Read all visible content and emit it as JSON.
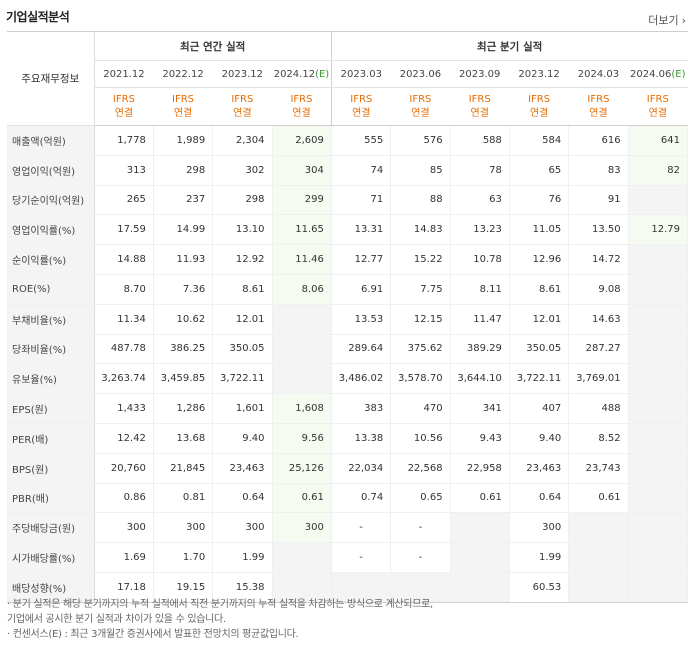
{
  "title": "기업실적분석",
  "more": "더보기",
  "header": {
    "corner": "주요재무정보",
    "annual_label": "최근 연간 실적",
    "quarter_label": "최근 분기 실적",
    "periods": [
      "2021.12",
      "2022.12",
      "2023.12",
      "2024.12",
      "2023.03",
      "2023.06",
      "2023.09",
      "2023.12",
      "2024.03",
      "2024.06"
    ],
    "est_mark": "(E)",
    "ifrs": "IFRS",
    "consol": "연결"
  },
  "rows": [
    {
      "label": "매출액(억원)",
      "values": [
        "1,778",
        "1,989",
        "2,304",
        "2,609",
        "555",
        "576",
        "588",
        "584",
        "616",
        "641"
      ]
    },
    {
      "label": "영업이익(억원)",
      "values": [
        "313",
        "298",
        "302",
        "304",
        "74",
        "85",
        "78",
        "65",
        "83",
        "82"
      ]
    },
    {
      "label": "당기순이익(억원)",
      "values": [
        "265",
        "237",
        "298",
        "299",
        "71",
        "88",
        "63",
        "76",
        "91",
        ""
      ]
    },
    {
      "label": "영업이익률(%)",
      "values": [
        "17.59",
        "14.99",
        "13.10",
        "11.65",
        "13.31",
        "14.83",
        "13.23",
        "11.05",
        "13.50",
        "12.79"
      ]
    },
    {
      "label": "순이익률(%)",
      "values": [
        "14.88",
        "11.93",
        "12.92",
        "11.46",
        "12.77",
        "15.22",
        "10.78",
        "12.96",
        "14.72",
        ""
      ]
    },
    {
      "label": "ROE(%)",
      "values": [
        "8.70",
        "7.36",
        "8.61",
        "8.06",
        "6.91",
        "7.75",
        "8.11",
        "8.61",
        "9.08",
        ""
      ]
    },
    {
      "label": "부채비율(%)",
      "values": [
        "11.34",
        "10.62",
        "12.01",
        "",
        "13.53",
        "12.15",
        "11.47",
        "12.01",
        "14.63",
        ""
      ]
    },
    {
      "label": "당좌비율(%)",
      "values": [
        "487.78",
        "386.25",
        "350.05",
        "",
        "289.64",
        "375.62",
        "389.29",
        "350.05",
        "287.27",
        ""
      ]
    },
    {
      "label": "유보율(%)",
      "values": [
        "3,263.74",
        "3,459.85",
        "3,722.11",
        "",
        "3,486.02",
        "3,578.70",
        "3,644.10",
        "3,722.11",
        "3,769.01",
        ""
      ]
    },
    {
      "label": "EPS(원)",
      "values": [
        "1,433",
        "1,286",
        "1,601",
        "1,608",
        "383",
        "470",
        "341",
        "407",
        "488",
        ""
      ]
    },
    {
      "label": "PER(배)",
      "values": [
        "12.42",
        "13.68",
        "9.40",
        "9.56",
        "13.38",
        "10.56",
        "9.43",
        "9.40",
        "8.52",
        ""
      ]
    },
    {
      "label": "BPS(원)",
      "values": [
        "20,760",
        "21,845",
        "23,463",
        "25,126",
        "22,034",
        "22,568",
        "22,958",
        "23,463",
        "23,743",
        ""
      ]
    },
    {
      "label": "PBR(배)",
      "values": [
        "0.86",
        "0.81",
        "0.64",
        "0.61",
        "0.74",
        "0.65",
        "0.61",
        "0.64",
        "0.61",
        ""
      ]
    },
    {
      "label": "주당배당금(원)",
      "values": [
        "300",
        "300",
        "300",
        "300",
        "-",
        "-",
        "",
        "300",
        "",
        ""
      ]
    },
    {
      "label": "시가배당률(%)",
      "values": [
        "1.69",
        "1.70",
        "1.99",
        "",
        "-",
        "-",
        "",
        "1.99",
        "",
        ""
      ]
    },
    {
      "label": "배당성향(%)",
      "values": [
        "17.18",
        "19.15",
        "15.38",
        "",
        "",
        "",
        "",
        "60.53",
        "",
        ""
      ]
    }
  ],
  "notes": [
    "· 분기 실적은 해당 분기까지의 누적 실적에서 직전 분기까지의 누적 실적을 차감하는 방식으로 계산되므로,",
    "   기업에서 공시한 분기 실적과 차이가 있을 수 있습니다.",
    "· 컨센서스(E) : 최근 3개월간 증권사에서 발표한 전망치의 평균값입니다."
  ]
}
